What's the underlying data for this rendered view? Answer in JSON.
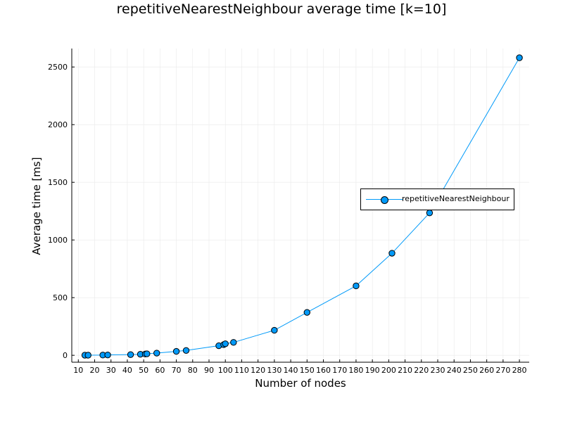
{
  "chart_data": {
    "type": "line",
    "title": "repetitiveNearestNeighbour average time [k=10]",
    "xlabel": "Number of nodes",
    "ylabel": "Average time [ms]",
    "xlim": [
      6,
      286
    ],
    "ylim": [
      -60,
      2660
    ],
    "xticks": [
      10,
      20,
      30,
      40,
      50,
      60,
      70,
      80,
      90,
      100,
      110,
      120,
      130,
      140,
      150,
      160,
      170,
      180,
      190,
      200,
      210,
      220,
      230,
      240,
      250,
      260,
      270,
      280
    ],
    "yticks": [
      0,
      500,
      1000,
      1500,
      2000,
      2500
    ],
    "grid": true,
    "legend_position": "right",
    "series": [
      {
        "name": "repetitiveNearestNeighbour",
        "color": "#009af9",
        "marker": "circle",
        "x": [
          14,
          16,
          25,
          28,
          42,
          48,
          51,
          52,
          58,
          70,
          76,
          96,
          99,
          100,
          105,
          130,
          150,
          180,
          202,
          225,
          280
        ],
        "y": [
          1,
          1,
          2,
          3,
          6,
          9,
          11,
          13,
          19,
          34,
          42,
          83,
          93,
          100,
          112,
          217,
          372,
          602,
          885,
          1235,
          2580
        ]
      }
    ]
  }
}
